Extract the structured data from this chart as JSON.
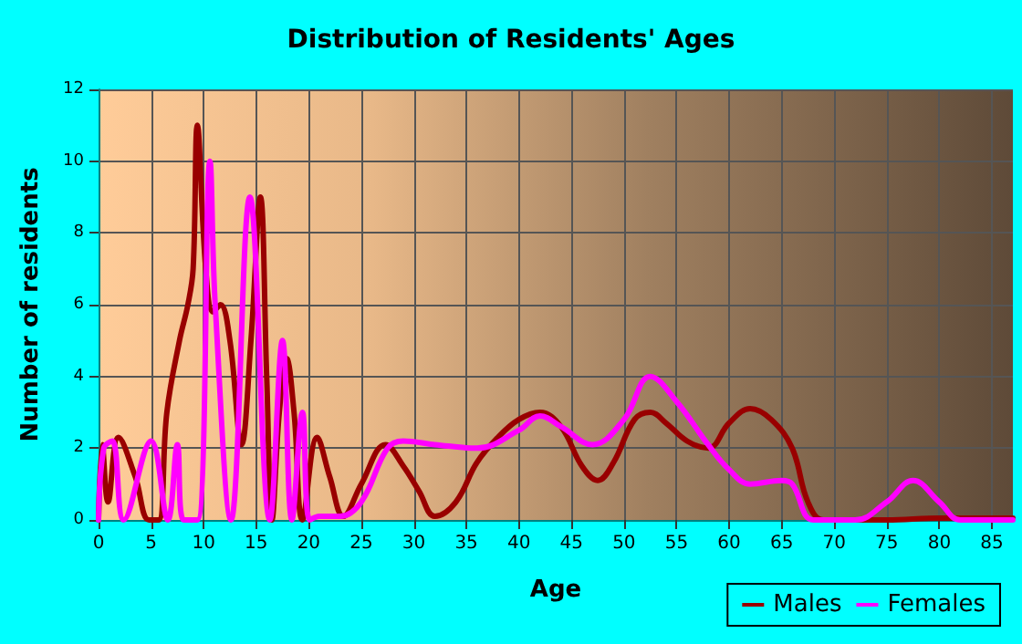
{
  "chart_data": {
    "type": "line",
    "title": "Distribution of Residents' Ages",
    "xlabel": "Age",
    "ylabel": "Number of residents",
    "xlim": [
      0,
      87
    ],
    "xticks": [
      0,
      5,
      10,
      15,
      20,
      25,
      30,
      35,
      40,
      45,
      50,
      55,
      60,
      65,
      70,
      75,
      80,
      85
    ],
    "ylim": [
      0,
      12
    ],
    "yticks": [
      0,
      2,
      4,
      6,
      8,
      10,
      12
    ],
    "grid": true,
    "legend": "bottom right",
    "marker": "none",
    "line_style": "solid",
    "series": [
      {
        "name": "Males",
        "color": "#990000",
        "x": [
          0,
          0.35,
          0.9,
          1.9,
          3.5,
          4.8,
          5.7,
          6.5,
          7.7,
          8.5,
          9,
          9.4,
          10.2,
          10.9,
          11.6,
          12.5,
          13.6,
          14.5,
          15.4,
          16,
          16.5,
          17.2,
          17.9,
          18.6,
          19.4,
          20.8,
          22,
          23.3,
          25,
          27.3,
          29,
          30.5,
          32,
          34,
          36,
          38,
          40,
          42,
          44,
          46,
          47.5,
          49,
          51,
          52.5,
          54,
          56,
          58,
          60,
          62,
          64,
          66,
          67.5,
          69,
          75,
          80,
          87
        ],
        "values": [
          0,
          2.1,
          0.5,
          2.3,
          1.2,
          0,
          0,
          3,
          5,
          6,
          7,
          11,
          7,
          5.8,
          6,
          5,
          2.1,
          5,
          9,
          4,
          0,
          3,
          4.5,
          3,
          0,
          2.3,
          1.2,
          0.1,
          1,
          2.1,
          1.5,
          0.8,
          0.1,
          0.5,
          1.6,
          2.3,
          2.8,
          3,
          2.6,
          1.5,
          1.1,
          1.6,
          2.8,
          3,
          2.7,
          2.2,
          2,
          2.7,
          3.1,
          2.8,
          2,
          0.5,
          0,
          0,
          0.05,
          0.05
        ]
      },
      {
        "name": "Females",
        "color": "#ff00ff",
        "x": [
          0,
          0.5,
          1.3,
          2.4,
          5,
          6.6,
          7.5,
          8.1,
          9.4,
          10.6,
          11.1,
          12.6,
          14.4,
          16.3,
          17.5,
          18.4,
          19.4,
          20.1,
          21,
          23,
          25,
          27.5,
          29,
          32,
          36,
          40,
          42,
          44,
          47,
          50,
          52.5,
          55,
          58,
          60,
          62,
          65,
          66,
          68,
          72,
          75,
          77.5,
          80,
          82,
          87
        ],
        "values": [
          0,
          2,
          2.2,
          0,
          2.2,
          0,
          2.1,
          0,
          0,
          10,
          6,
          0,
          9,
          0,
          5,
          0,
          3,
          0,
          0.1,
          0.1,
          0.5,
          2,
          2.2,
          2.1,
          2,
          2.5,
          2.9,
          2.6,
          2.1,
          2.8,
          4,
          3.3,
          2.1,
          1.4,
          1,
          1.1,
          1,
          0,
          0,
          0.5,
          1.1,
          0.5,
          0,
          0
        ]
      }
    ]
  }
}
